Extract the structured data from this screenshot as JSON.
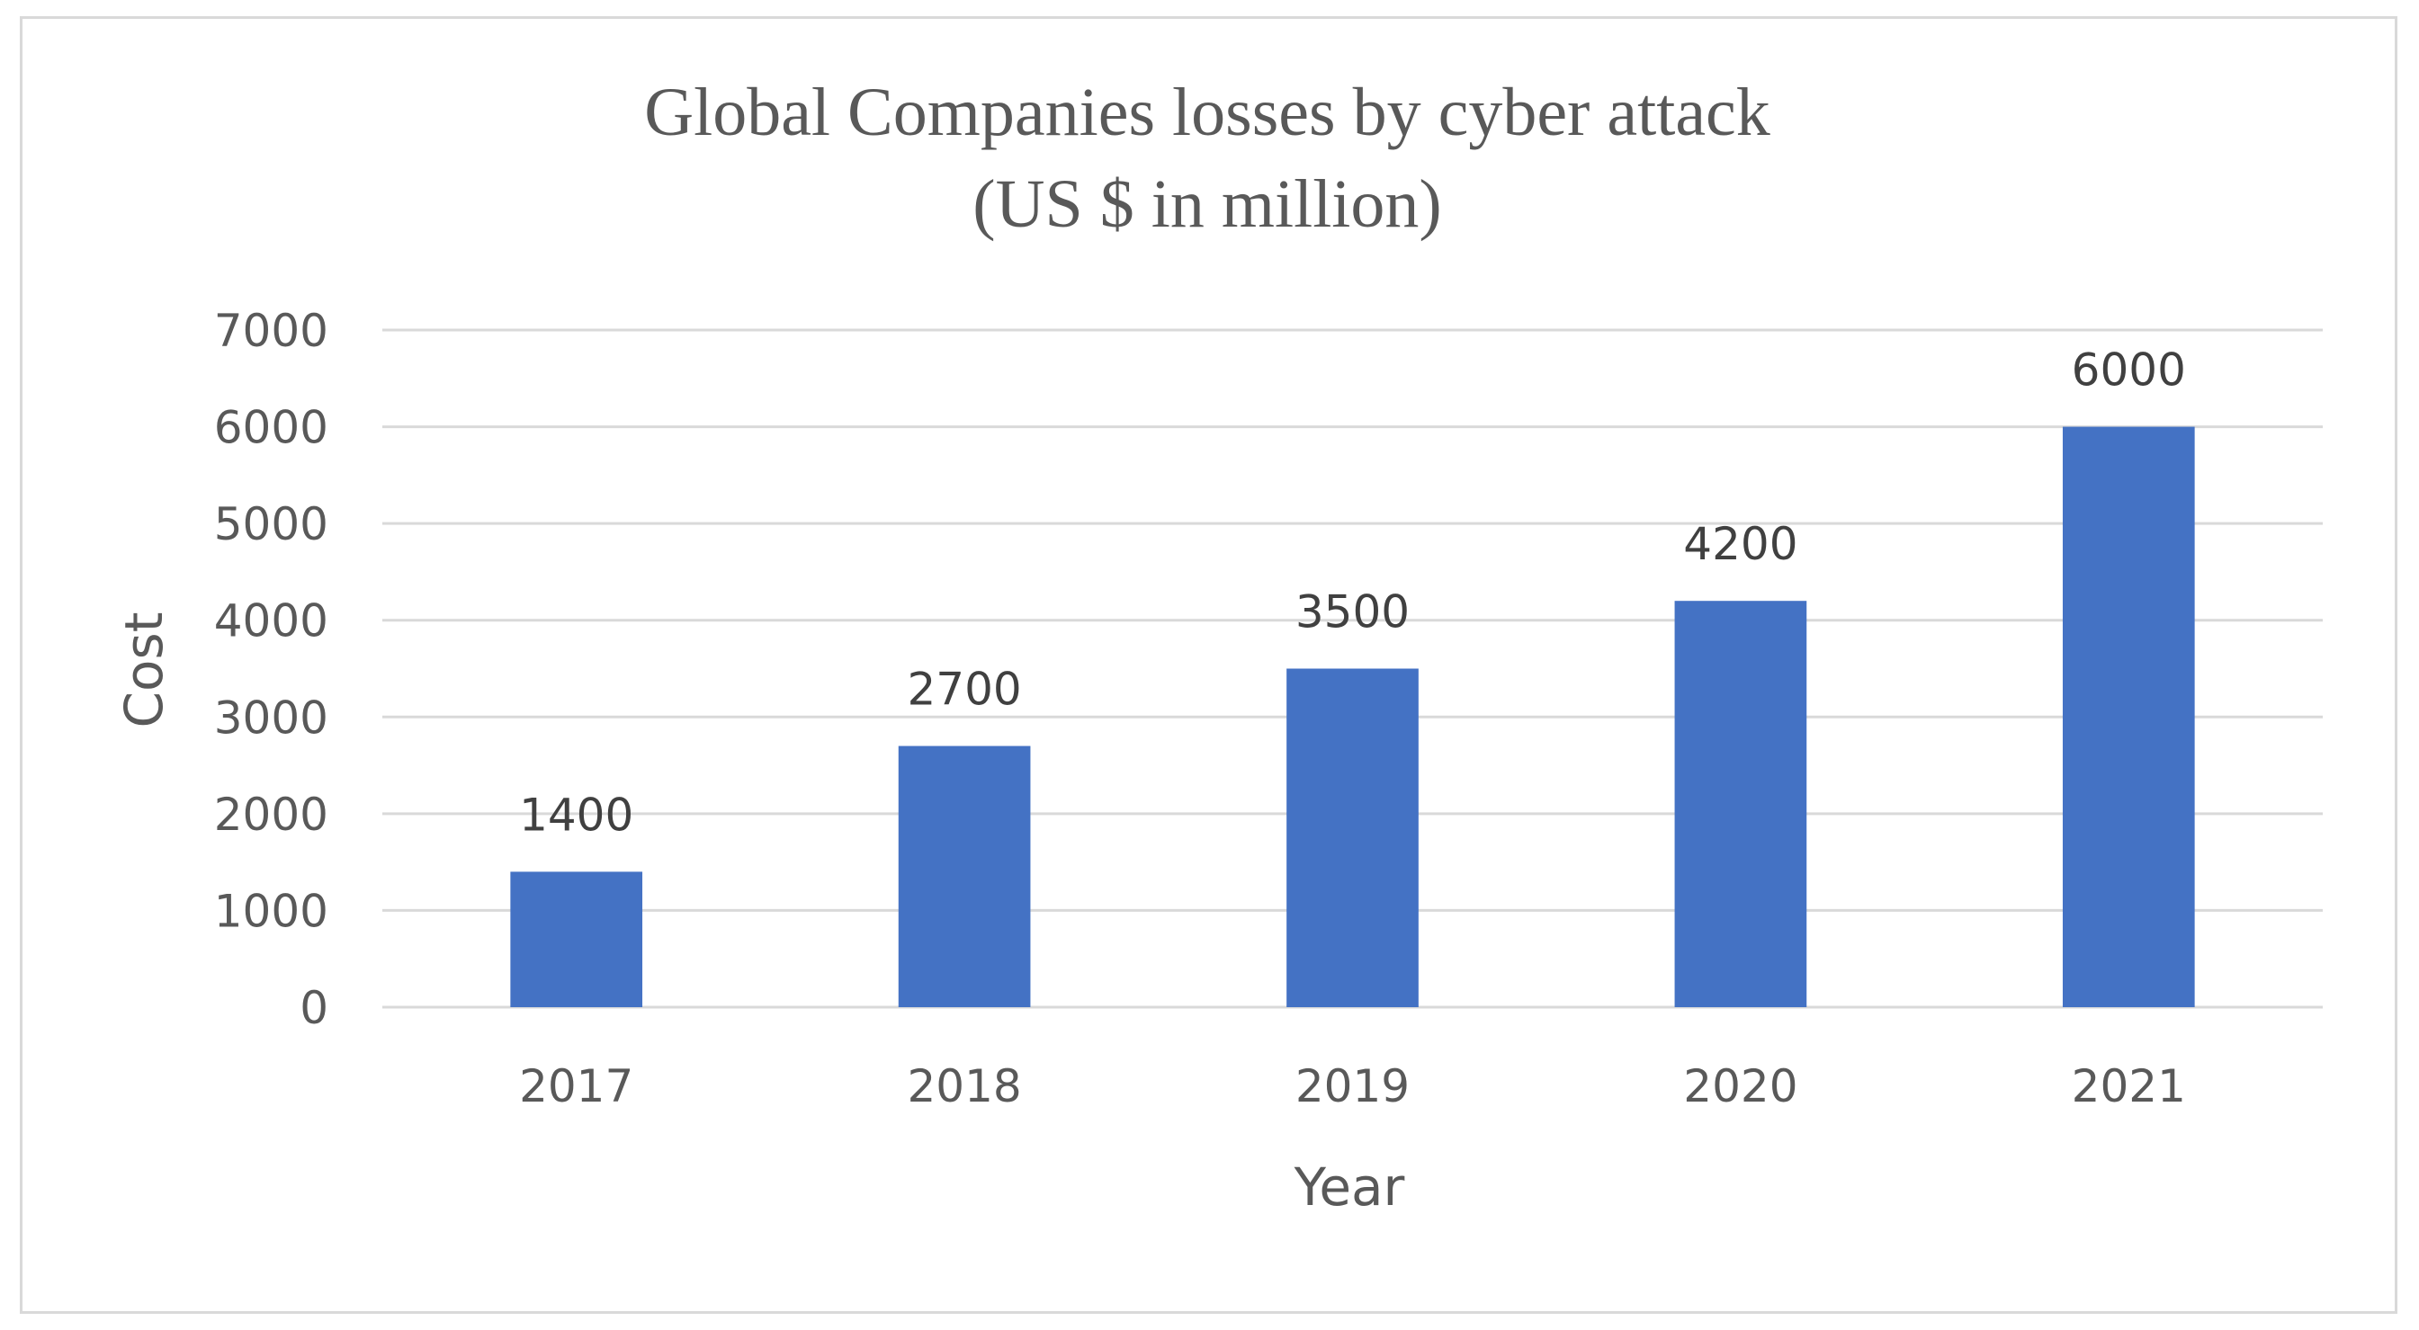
{
  "chart_data": {
    "type": "bar",
    "title": "Global Companies losses by cyber attack",
    "subtitle": "(US $ in million)",
    "xlabel": "Year",
    "ylabel": "Cost",
    "categories": [
      "2017",
      "2018",
      "2019",
      "2020",
      "2021"
    ],
    "values": [
      1400,
      2700,
      3500,
      4200,
      6000
    ],
    "data_labels": [
      "1400",
      "2700",
      "3500",
      "4200",
      "6000"
    ],
    "ylim": [
      0,
      7000
    ],
    "yticks": [
      0,
      1000,
      2000,
      3000,
      4000,
      5000,
      6000,
      7000
    ],
    "ytick_labels": [
      "0",
      "1000",
      "2000",
      "3000",
      "4000",
      "5000",
      "6000",
      "7000"
    ],
    "grid": true,
    "legend": "none",
    "bar_color": "#4472c4"
  }
}
